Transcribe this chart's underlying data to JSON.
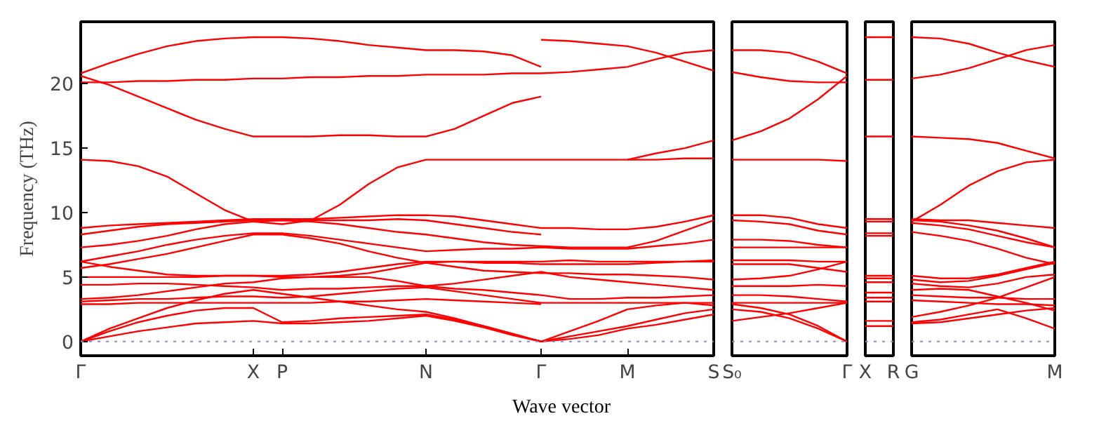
{
  "chart_data": [
    {
      "type": "line",
      "xlabel": "Wave vector",
      "ylabel": "Frequency (THz)",
      "ylim": [
        -1.1,
        24.8
      ],
      "yticks": [
        0,
        5,
        10,
        15,
        20
      ],
      "categories": [
        "Γ",
        null,
        null,
        null,
        null,
        null,
        "X",
        "P",
        null,
        null,
        null,
        null,
        "N",
        null,
        null,
        null,
        "Γ",
        null,
        null,
        "M",
        null,
        null,
        "S"
      ],
      "ref_lines": [
        {
          "axis": "y",
          "value": 0,
          "color": "#8888cc",
          "line_style": "dotted"
        }
      ],
      "series": [
        {
          "color": "#ff0000",
          "values": [
            20.8,
            21.6,
            22.3,
            22.9,
            23.3,
            23.5,
            23.6,
            23.6,
            23.5,
            23.3,
            23.0,
            22.8,
            22.6,
            22.6,
            22.5,
            22.2,
            21.3,
            null,
            null,
            null,
            null,
            null,
            null
          ]
        },
        {
          "color": "#ff0000",
          "values": [
            null,
            null,
            null,
            null,
            null,
            null,
            null,
            null,
            null,
            null,
            null,
            null,
            null,
            null,
            null,
            null,
            23.4,
            23.3,
            23.1,
            22.9,
            22.4,
            21.7,
            21.0
          ]
        },
        {
          "color": "#ff0000",
          "values": [
            20.1,
            20.1,
            20.2,
            20.2,
            20.3,
            20.3,
            20.4,
            20.4,
            20.5,
            20.5,
            20.6,
            20.6,
            20.7,
            20.7,
            20.7,
            20.8,
            20.8,
            20.9,
            21.1,
            21.3,
            21.9,
            22.4,
            22.6
          ]
        },
        {
          "color": "#ff0000",
          "values": [
            20.6,
            19.9,
            19.0,
            18.1,
            17.2,
            16.5,
            15.9,
            15.9,
            15.9,
            16.0,
            16.0,
            15.9,
            15.9,
            16.5,
            17.5,
            18.5,
            19.0,
            null,
            null,
            null,
            null,
            null,
            null
          ]
        },
        {
          "color": "#ff0000",
          "values": [
            14.1,
            14.0,
            13.6,
            12.8,
            11.5,
            10.2,
            9.3,
            9.1,
            9.4,
            10.6,
            12.2,
            13.5,
            14.1,
            14.1,
            14.1,
            14.1,
            14.1,
            14.1,
            14.1,
            14.1,
            14.1,
            14.2,
            14.2
          ]
        },
        {
          "color": "#ff0000",
          "values": [
            null,
            null,
            null,
            null,
            null,
            null,
            null,
            null,
            null,
            null,
            null,
            null,
            null,
            null,
            null,
            null,
            null,
            null,
            null,
            14.1,
            14.6,
            15.0,
            15.6
          ]
        },
        {
          "color": "#ff0000",
          "values": [
            8.8,
            9.0,
            9.1,
            9.2,
            9.3,
            9.4,
            9.5,
            9.5,
            9.5,
            9.6,
            9.7,
            9.8,
            9.8,
            9.7,
            9.4,
            9.1,
            8.8,
            8.8,
            8.7,
            8.7,
            8.9,
            9.3,
            9.8
          ]
        },
        {
          "color": "#ff0000",
          "values": [
            8.3,
            8.6,
            8.9,
            9.1,
            9.2,
            9.3,
            9.4,
            9.4,
            9.4,
            9.4,
            9.4,
            9.5,
            9.4,
            9.1,
            8.8,
            8.5,
            8.3,
            null,
            null,
            null,
            null,
            null,
            null
          ]
        },
        {
          "color": "#ff0000",
          "values": [
            7.3,
            7.5,
            7.8,
            8.2,
            8.7,
            9.1,
            9.3,
            9.4,
            9.3,
            9.1,
            8.8,
            8.5,
            8.3,
            8.0,
            7.7,
            7.5,
            7.4,
            7.3,
            7.3,
            7.3,
            7.8,
            8.6,
            9.4
          ]
        },
        {
          "color": "#ff0000",
          "values": [
            6.2,
            6.6,
            7.0,
            7.5,
            7.9,
            8.2,
            8.4,
            8.4,
            8.2,
            7.9,
            7.6,
            7.3,
            7.0,
            7.1,
            7.2,
            7.2,
            7.3,
            7.2,
            7.2,
            7.2,
            7.4,
            7.6,
            7.9
          ]
        },
        {
          "color": "#ff0000",
          "values": [
            5.7,
            6.0,
            6.4,
            6.8,
            7.3,
            7.8,
            8.3,
            8.3,
            8.0,
            7.6,
            7.0,
            6.5,
            6.1,
            6.2,
            6.2,
            6.2,
            6.2,
            6.3,
            6.2,
            6.2,
            6.2,
            6.2,
            6.2
          ]
        },
        {
          "color": "#ff0000",
          "values": [
            6.2,
            5.8,
            5.5,
            5.2,
            5.1,
            5.1,
            5.1,
            5.1,
            5.2,
            5.4,
            5.7,
            6.0,
            6.2,
            6.2,
            6.1,
            6.1,
            6.0,
            6.0,
            6.0,
            6.0,
            6.1,
            6.2,
            6.3
          ]
        },
        {
          "color": "#ff0000",
          "values": [
            5.0,
            5.0,
            5.0,
            5.0,
            5.0,
            5.1,
            5.1,
            5.0,
            5.0,
            5.1,
            5.3,
            5.7,
            6.1,
            5.8,
            5.5,
            5.4,
            5.3,
            5.3,
            5.2,
            5.2,
            5.1,
            5.0,
            4.8
          ]
        },
        {
          "color": "#ff0000",
          "values": [
            4.4,
            4.4,
            4.5,
            4.5,
            4.4,
            4.3,
            4.2,
            4.0,
            4.1,
            4.1,
            4.2,
            4.3,
            4.3,
            4.5,
            4.8,
            5.1,
            5.4,
            5.0,
            4.8,
            4.6,
            4.4,
            4.2,
            4.0
          ]
        },
        {
          "color": "#ff0000",
          "values": [
            3.3,
            3.4,
            3.6,
            3.9,
            4.2,
            4.5,
            4.6,
            4.9,
            5.0,
            5.0,
            5.0,
            4.7,
            4.3,
            4.1,
            4.0,
            3.8,
            3.6,
            3.3,
            3.3,
            3.4,
            3.4,
            3.5,
            3.6
          ]
        },
        {
          "color": "#ff0000",
          "values": [
            3.1,
            3.2,
            3.3,
            3.3,
            3.4,
            3.5,
            3.5,
            3.4,
            3.5,
            3.7,
            3.9,
            4.1,
            4.2,
            3.9,
            3.6,
            3.3,
            3.0,
            3.0,
            3.0,
            3.0,
            3.0,
            3.0,
            3.0
          ]
        },
        {
          "color": "#ff0000",
          "values": [
            2.9,
            2.9,
            3.0,
            3.0,
            3.0,
            3.0,
            3.0,
            3.0,
            3.0,
            3.1,
            3.1,
            3.2,
            3.3,
            3.2,
            3.1,
            3.0,
            2.9,
            null,
            null,
            null,
            null,
            null,
            null
          ]
        },
        {
          "color": "#ff0000",
          "values": [
            0,
            1.0,
            1.8,
            2.6,
            3.2,
            3.7,
            4.0,
            3.7,
            3.4,
            3.1,
            2.8,
            2.5,
            2.3,
            1.8,
            1.2,
            0.6,
            0,
            0.8,
            1.6,
            2.5,
            2.8,
            3.0,
            2.8
          ]
        },
        {
          "color": "#ff0000",
          "values": [
            0,
            0.8,
            1.5,
            2.0,
            2.4,
            2.6,
            2.6,
            1.5,
            1.6,
            1.8,
            1.9,
            2.0,
            2.1,
            1.7,
            1.2,
            0.6,
            0,
            0.4,
            0.8,
            1.2,
            1.7,
            2.2,
            2.5
          ]
        },
        {
          "color": "#ff0000",
          "values": [
            0,
            0.4,
            0.8,
            1.1,
            1.4,
            1.5,
            1.6,
            1.4,
            1.4,
            1.5,
            1.6,
            1.8,
            2.0,
            1.6,
            1.1,
            0.5,
            0,
            0.2,
            0.5,
            1.0,
            1.3,
            1.7,
            2.1
          ]
        }
      ]
    },
    {
      "type": "line",
      "tick_labels": "x",
      "ylim": [
        -1.1,
        24.8
      ],
      "categories": [
        "S₀",
        null,
        null,
        null,
        "Γ"
      ],
      "ref_lines": [
        {
          "axis": "y",
          "value": 0,
          "color": "#8888cc",
          "line_style": "dotted"
        }
      ],
      "series": [
        {
          "color": "#ff0000",
          "values": [
            22.6,
            22.6,
            22.4,
            21.7,
            20.8
          ]
        },
        {
          "color": "#ff0000",
          "values": [
            20.9,
            20.5,
            20.2,
            20.1,
            20.1
          ]
        },
        {
          "color": "#ff0000",
          "values": [
            15.6,
            16.3,
            17.3,
            18.8,
            20.6
          ]
        },
        {
          "color": "#ff0000",
          "values": [
            14.1,
            14.1,
            14.1,
            14.1,
            14.0
          ]
        },
        {
          "color": "#ff0000",
          "values": [
            9.8,
            9.8,
            9.6,
            9.1,
            8.8
          ]
        },
        {
          "color": "#ff0000",
          "values": [
            9.4,
            9.3,
            9.1,
            8.6,
            8.3
          ]
        },
        {
          "color": "#ff0000",
          "values": [
            7.9,
            7.9,
            7.8,
            7.5,
            7.3
          ]
        },
        {
          "color": "#ff0000",
          "values": [
            7.3,
            7.3,
            7.3,
            7.3,
            7.3
          ]
        },
        {
          "color": "#ff0000",
          "values": [
            6.3,
            6.3,
            6.3,
            6.2,
            6.2
          ]
        },
        {
          "color": "#ff0000",
          "values": [
            6.0,
            6.0,
            6.0,
            5.7,
            5.4
          ]
        },
        {
          "color": "#ff0000",
          "values": [
            4.8,
            4.9,
            5.1,
            5.6,
            6.2
          ]
        },
        {
          "color": "#ff0000",
          "values": [
            4.3,
            4.3,
            4.3,
            4.4,
            4.3
          ]
        },
        {
          "color": "#ff0000",
          "values": [
            3.6,
            3.6,
            3.5,
            3.3,
            3.1
          ]
        },
        {
          "color": "#ff0000",
          "values": [
            3.0,
            3.0,
            3.0,
            3.0,
            3.0
          ]
        },
        {
          "color": "#ff0000",
          "values": [
            2.9,
            2.6,
            2.1,
            1.2,
            0
          ]
        },
        {
          "color": "#ff0000",
          "values": [
            2.5,
            2.3,
            1.8,
            1.0,
            0
          ]
        },
        {
          "color": "#ff0000",
          "values": [
            1.6,
            1.9,
            2.2,
            2.6,
            3.0
          ]
        }
      ]
    },
    {
      "type": "line",
      "tick_labels": "x",
      "ylim": [
        -1.1,
        24.8
      ],
      "categories": [
        "X",
        "R"
      ],
      "ref_lines": [
        {
          "axis": "y",
          "value": 0,
          "color": "#8888cc",
          "line_style": "dotted"
        }
      ],
      "series": [
        {
          "color": "#ff0000",
          "values": [
            23.6,
            23.6
          ]
        },
        {
          "color": "#ff0000",
          "values": [
            20.3,
            20.3
          ]
        },
        {
          "color": "#ff0000",
          "values": [
            15.9,
            15.9
          ]
        },
        {
          "color": "#ff0000",
          "values": [
            9.5,
            9.5
          ]
        },
        {
          "color": "#ff0000",
          "values": [
            9.3,
            9.3
          ]
        },
        {
          "color": "#ff0000",
          "values": [
            8.4,
            8.4
          ]
        },
        {
          "color": "#ff0000",
          "values": [
            8.2,
            8.2
          ]
        },
        {
          "color": "#ff0000",
          "values": [
            5.1,
            5.1
          ]
        },
        {
          "color": "#ff0000",
          "values": [
            4.9,
            4.9
          ]
        },
        {
          "color": "#ff0000",
          "values": [
            4.6,
            4.6
          ]
        },
        {
          "color": "#ff0000",
          "values": [
            3.8,
            3.8
          ]
        },
        {
          "color": "#ff0000",
          "values": [
            3.4,
            3.4
          ]
        },
        {
          "color": "#ff0000",
          "values": [
            3.1,
            3.1
          ]
        },
        {
          "color": "#ff0000",
          "values": [
            1.6,
            1.6
          ]
        },
        {
          "color": "#ff0000",
          "values": [
            1.2,
            1.2
          ]
        }
      ]
    },
    {
      "type": "line",
      "tick_labels": "x",
      "ylim": [
        -1.1,
        24.8
      ],
      "categories": [
        "G",
        null,
        null,
        null,
        null,
        "M"
      ],
      "ref_lines": [
        {
          "axis": "y",
          "value": 0,
          "color": "#8888cc",
          "line_style": "dotted"
        }
      ],
      "series": [
        {
          "color": "#ff0000",
          "values": [
            23.6,
            23.5,
            23.1,
            22.4,
            21.8,
            21.3
          ]
        },
        {
          "color": "#ff0000",
          "values": [
            20.4,
            20.7,
            21.2,
            21.9,
            22.6,
            23.0
          ]
        },
        {
          "color": "#ff0000",
          "values": [
            15.9,
            15.8,
            15.7,
            15.4,
            14.8,
            14.2
          ]
        },
        {
          "color": "#ff0000",
          "values": [
            9.3,
            10.6,
            12.1,
            13.2,
            13.9,
            14.1
          ]
        },
        {
          "color": "#ff0000",
          "values": [
            9.5,
            9.4,
            9.4,
            9.2,
            9.0,
            8.8
          ]
        },
        {
          "color": "#ff0000",
          "values": [
            9.4,
            9.3,
            9.0,
            8.6,
            8.0,
            7.3
          ]
        },
        {
          "color": "#ff0000",
          "values": [
            9.2,
            9.0,
            8.7,
            8.2,
            7.7,
            7.3
          ]
        },
        {
          "color": "#ff0000",
          "values": [
            8.5,
            8.2,
            7.8,
            7.2,
            6.5,
            6.0
          ]
        },
        {
          "color": "#ff0000",
          "values": [
            5.1,
            4.9,
            4.9,
            5.2,
            5.7,
            6.2
          ]
        },
        {
          "color": "#ff0000",
          "values": [
            4.8,
            4.6,
            4.7,
            5.1,
            5.6,
            6.1
          ]
        },
        {
          "color": "#ff0000",
          "values": [
            4.5,
            4.3,
            4.2,
            4.5,
            5.0,
            5.2
          ]
        },
        {
          "color": "#ff0000",
          "values": [
            4.0,
            4.1,
            4.0,
            3.5,
            3.0,
            2.4
          ]
        },
        {
          "color": "#ff0000",
          "values": [
            3.6,
            3.5,
            3.4,
            3.4,
            3.3,
            3.3
          ]
        },
        {
          "color": "#ff0000",
          "values": [
            3.2,
            3.1,
            3.0,
            2.9,
            2.9,
            2.8
          ]
        },
        {
          "color": "#ff0000",
          "values": [
            1.9,
            2.3,
            2.8,
            3.4,
            4.2,
            5.0
          ]
        },
        {
          "color": "#ff0000",
          "values": [
            1.4,
            1.5,
            1.8,
            2.1,
            2.4,
            2.6
          ]
        },
        {
          "color": "#ff0000",
          "values": [
            1.5,
            1.7,
            2.1,
            2.5,
            1.8,
            1.0
          ]
        }
      ]
    }
  ]
}
